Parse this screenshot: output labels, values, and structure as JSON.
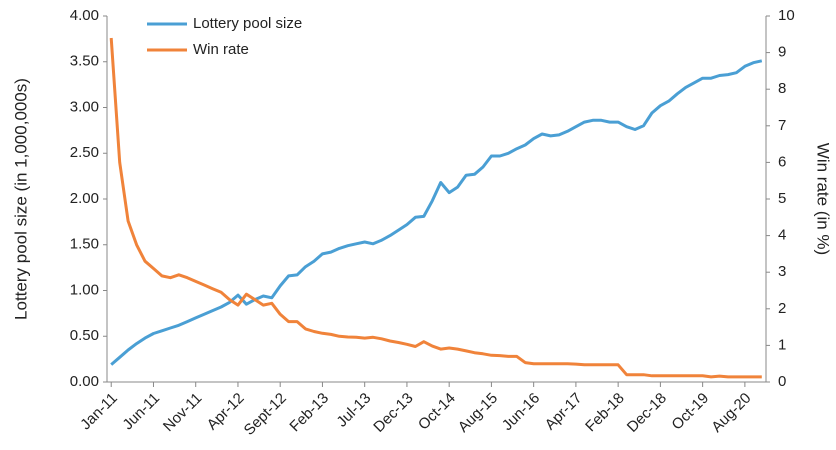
{
  "chart_data": {
    "type": "line",
    "y_label": "Lottery pool size (in 1,000,000s)",
    "y2_label": "Win rate (in %)",
    "categories": [
      "Jan-11",
      null,
      null,
      null,
      null,
      "Jun-11",
      null,
      null,
      null,
      null,
      "Nov-11",
      null,
      null,
      null,
      null,
      "Apr-12",
      null,
      null,
      null,
      null,
      "Sept-12",
      null,
      null,
      null,
      null,
      "Feb-13",
      null,
      null,
      null,
      null,
      "Jul-13",
      null,
      null,
      null,
      null,
      "Dec-13",
      null,
      null,
      null,
      null,
      "Oct-14",
      null,
      null,
      null,
      null,
      "Aug-15",
      null,
      null,
      null,
      null,
      "Jun-16",
      null,
      null,
      null,
      null,
      "Apr-17",
      null,
      null,
      null,
      null,
      "Feb-18",
      null,
      null,
      null,
      null,
      "Dec-18",
      null,
      null,
      null,
      null,
      "Oct-19",
      null,
      null,
      null,
      null,
      "Aug-20",
      null,
      null
    ],
    "series": [
      {
        "name": "Lottery pool size",
        "color": "#4a9fd4",
        "axis": "y",
        "values": [
          0.19,
          0.27,
          0.35,
          0.42,
          0.48,
          0.53,
          0.56,
          0.59,
          0.62,
          0.66,
          0.7,
          0.74,
          0.78,
          0.82,
          0.87,
          0.95,
          0.85,
          0.9,
          0.94,
          0.92,
          1.05,
          1.16,
          1.17,
          1.26,
          1.32,
          1.4,
          1.42,
          1.46,
          1.49,
          1.51,
          1.53,
          1.51,
          1.55,
          1.6,
          1.66,
          1.72,
          1.8,
          1.81,
          1.98,
          2.18,
          2.07,
          2.13,
          2.26,
          2.27,
          2.35,
          2.47,
          2.47,
          2.5,
          2.55,
          2.59,
          2.66,
          2.71,
          2.69,
          2.7,
          2.74,
          2.79,
          2.84,
          2.86,
          2.86,
          2.84,
          2.84,
          2.79,
          2.76,
          2.8,
          2.94,
          3.02,
          3.07,
          3.15,
          3.22,
          3.27,
          3.32,
          3.32,
          3.35,
          3.36,
          3.38,
          3.45,
          3.49,
          3.51
        ]
      },
      {
        "name": "Win rate",
        "color": "#f0833a",
        "axis": "y2",
        "values": [
          9.4,
          6.0,
          4.4,
          3.75,
          3.3,
          3.1,
          2.9,
          2.85,
          2.93,
          2.85,
          2.75,
          2.65,
          2.55,
          2.45,
          2.25,
          2.1,
          2.4,
          2.25,
          2.1,
          2.15,
          1.85,
          1.65,
          1.65,
          1.45,
          1.38,
          1.33,
          1.3,
          1.25,
          1.23,
          1.22,
          1.2,
          1.22,
          1.18,
          1.12,
          1.08,
          1.03,
          0.97,
          1.1,
          0.98,
          0.9,
          0.93,
          0.9,
          0.85,
          0.8,
          0.77,
          0.73,
          0.72,
          0.7,
          0.7,
          0.53,
          0.5,
          0.5,
          0.5,
          0.5,
          0.5,
          0.49,
          0.47,
          0.47,
          0.47,
          0.47,
          0.47,
          0.2,
          0.2,
          0.2,
          0.17,
          0.17,
          0.17,
          0.17,
          0.17,
          0.17,
          0.17,
          0.14,
          0.16,
          0.14,
          0.14,
          0.14,
          0.14,
          0.14
        ]
      }
    ],
    "ylim": [
      0,
      4
    ],
    "yticks": [
      {
        "value": 0,
        "label": "0.00"
      },
      {
        "value": 0.5,
        "label": "0.50"
      },
      {
        "value": 1,
        "label": "1.00"
      },
      {
        "value": 1.5,
        "label": "1.50"
      },
      {
        "value": 2,
        "label": "2.00"
      },
      {
        "value": 2.5,
        "label": "2.50"
      },
      {
        "value": 3,
        "label": "3.00"
      },
      {
        "value": 3.5,
        "label": "3.50"
      },
      {
        "value": 4,
        "label": "4.00"
      }
    ],
    "y2lim": [
      0,
      10
    ],
    "y2ticks": [
      0,
      1,
      2,
      3,
      4,
      5,
      6,
      7,
      8,
      9,
      10
    ],
    "legend": "upper left"
  }
}
